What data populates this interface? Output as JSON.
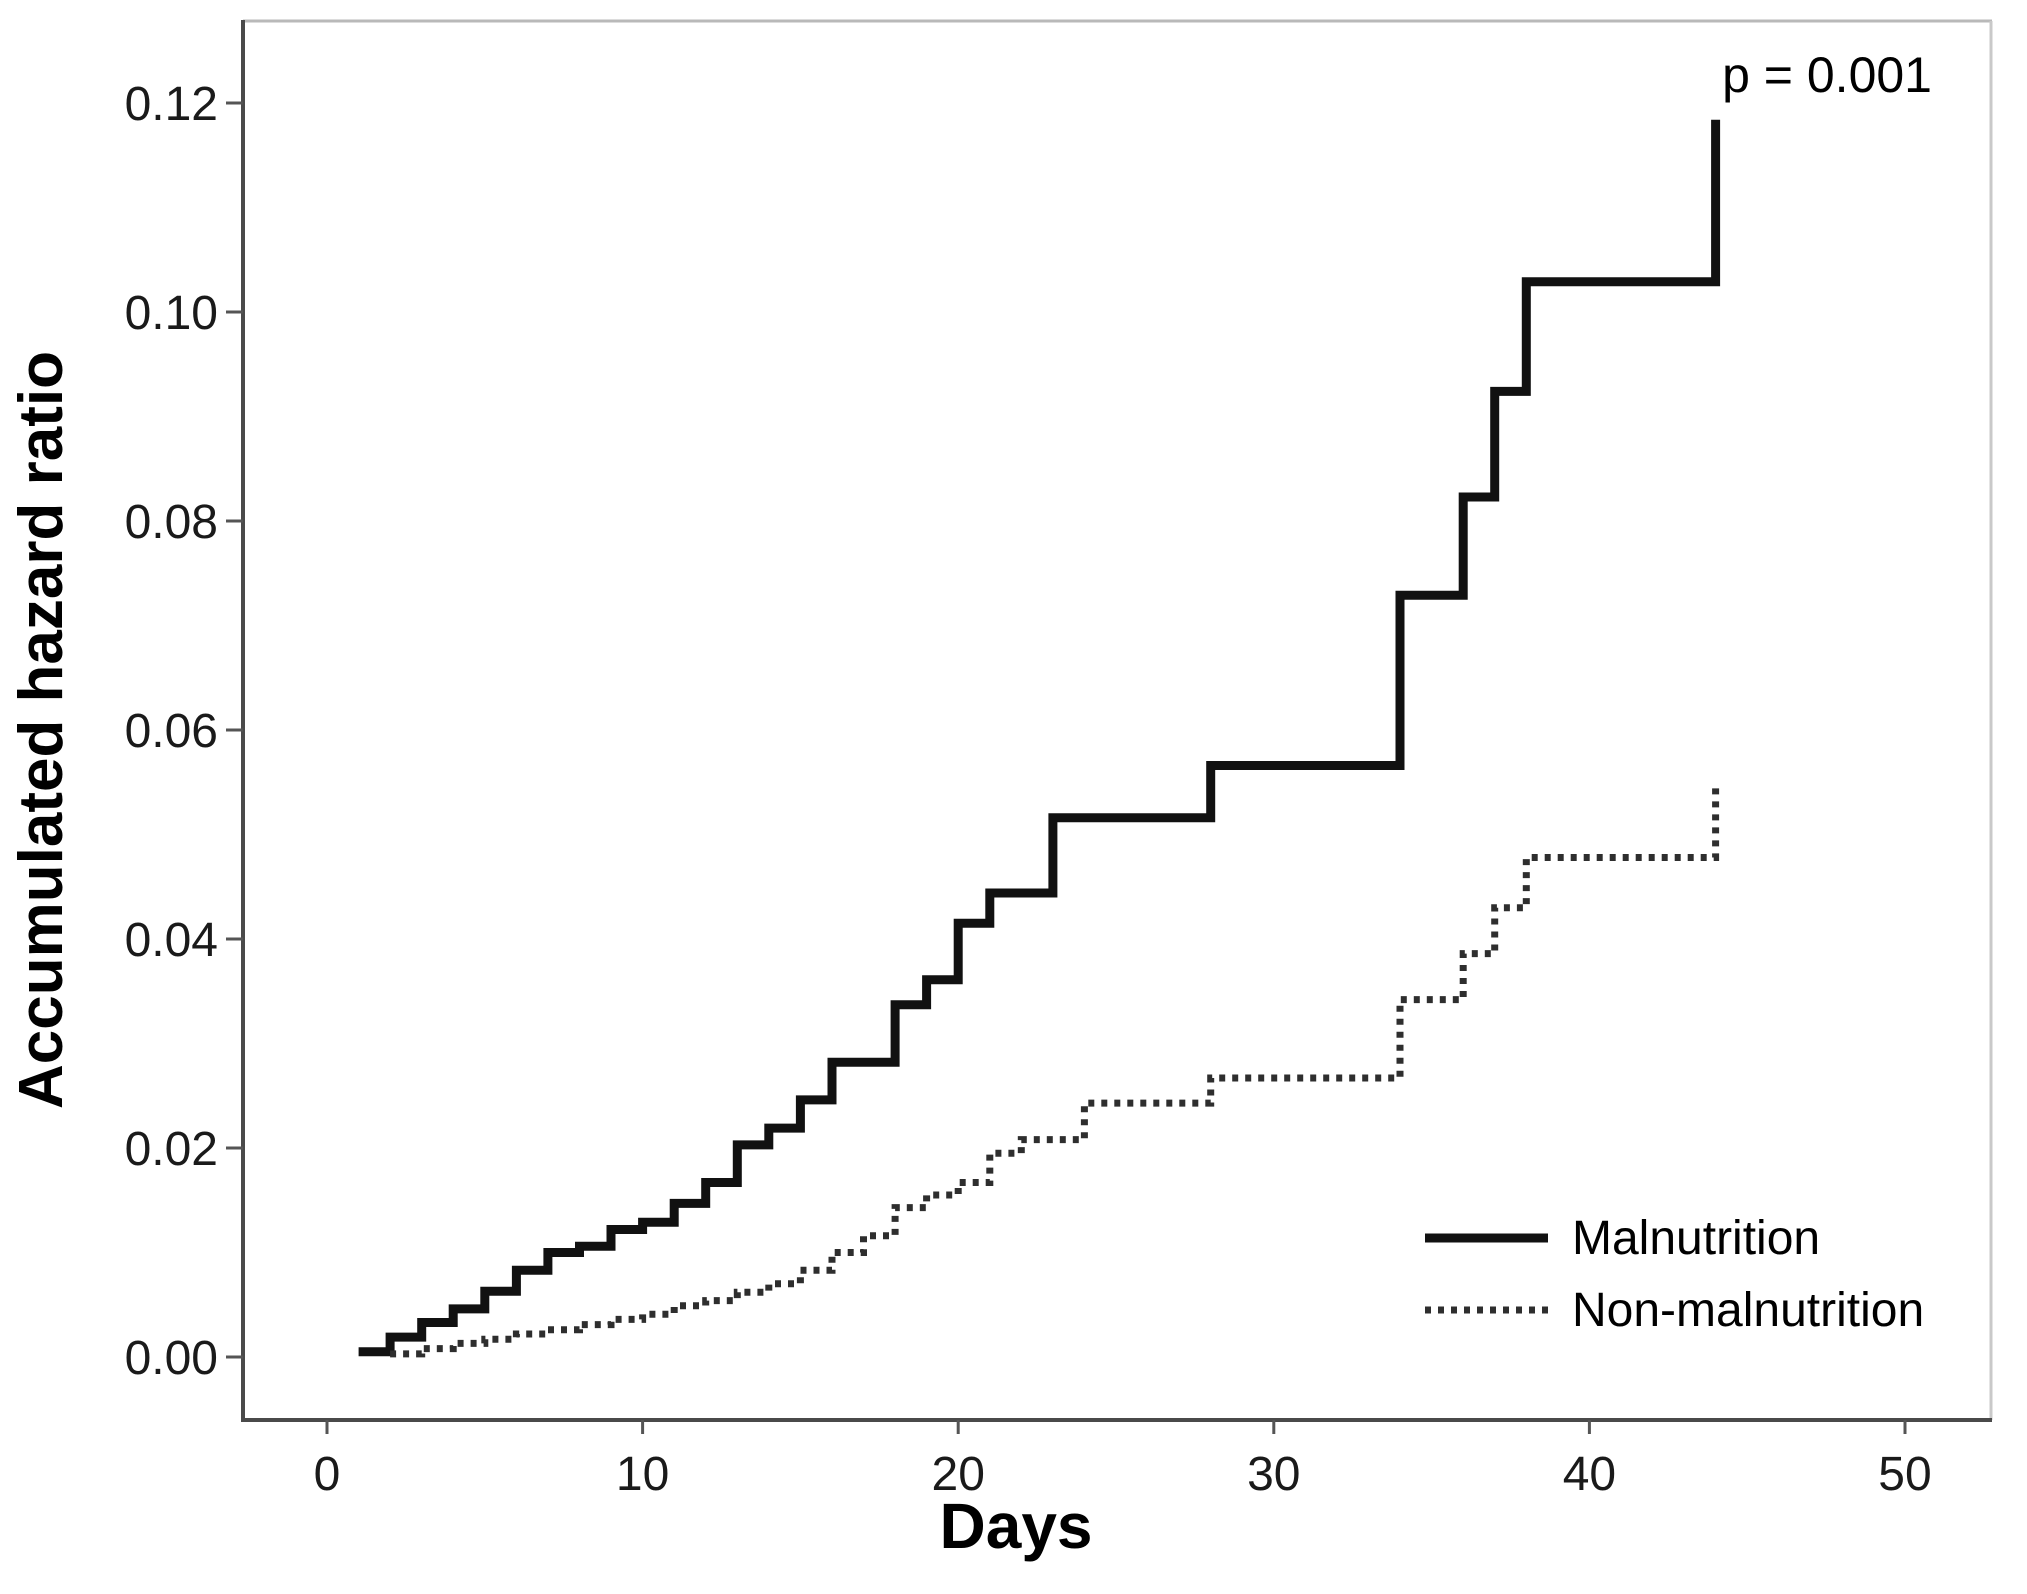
{
  "figure": {
    "p_value_label": "p = 0.001",
    "x_axis": {
      "title": "Days",
      "tick_labels": [
        "0",
        "10",
        "20",
        "30",
        "40",
        "50"
      ]
    },
    "y_axis": {
      "title": "Accumulated hazard ratio",
      "tick_labels": [
        "0.00",
        "0.02",
        "0.04",
        "0.06",
        "0.08",
        "0.10",
        "0.12"
      ]
    },
    "legend": [
      {
        "label": "Malnutrition",
        "style": "solid"
      },
      {
        "label": "Non-malnutrition",
        "style": "dotted"
      }
    ]
  },
  "colors": {
    "background": "#ffffff",
    "solid_line": "#111111",
    "dotted_line": "#2e2e2e",
    "axis_dark": "#4a4a4a",
    "axis_light": "#b9b9b9",
    "tick": "#555555",
    "text": "#1a1a1a"
  },
  "chart_data": {
    "type": "line",
    "subtype": "step-post-cumulative-hazard",
    "title": "",
    "xlabel": "Days",
    "ylabel": "Accumulated hazard ratio",
    "xlim": [
      0,
      52
    ],
    "ylim": [
      0,
      0.127
    ],
    "x_ticks": [
      0,
      10,
      20,
      30,
      40,
      50
    ],
    "y_ticks": [
      0.0,
      0.02,
      0.04,
      0.06,
      0.08,
      0.1,
      0.12
    ],
    "grid": false,
    "legend_position": "lower-right",
    "annotations": [
      {
        "text": "p = 0.001",
        "position": "top-right"
      }
    ],
    "series": [
      {
        "name": "Malnutrition",
        "line_style": "solid",
        "color": "#111111",
        "points": [
          [
            1,
            0.0005
          ],
          [
            2,
            0.0019
          ],
          [
            3,
            0.0033
          ],
          [
            4,
            0.0046
          ],
          [
            5,
            0.0063
          ],
          [
            6,
            0.0083
          ],
          [
            7,
            0.01
          ],
          [
            8,
            0.0106
          ],
          [
            9,
            0.0122
          ],
          [
            10,
            0.0129
          ],
          [
            11,
            0.0147
          ],
          [
            12,
            0.0167
          ],
          [
            13,
            0.0203
          ],
          [
            14,
            0.0219
          ],
          [
            15,
            0.0246
          ],
          [
            16,
            0.0282
          ],
          [
            18,
            0.0337
          ],
          [
            19,
            0.0361
          ],
          [
            20,
            0.0415
          ],
          [
            21,
            0.0444
          ],
          [
            23,
            0.0516
          ],
          [
            28,
            0.0566
          ],
          [
            34,
            0.0729
          ],
          [
            36,
            0.0823
          ],
          [
            37,
            0.0924
          ],
          [
            38,
            0.1029
          ],
          [
            44,
            0.1184
          ]
        ]
      },
      {
        "name": "Non-malnutrition",
        "line_style": "dotted",
        "color": "#2e2e2e",
        "points": [
          [
            2,
            0.0003
          ],
          [
            3,
            0.0008
          ],
          [
            4,
            0.0013
          ],
          [
            5,
            0.0017
          ],
          [
            6,
            0.0022
          ],
          [
            7,
            0.0026
          ],
          [
            8,
            0.0031
          ],
          [
            9,
            0.0036
          ],
          [
            10,
            0.0041
          ],
          [
            11,
            0.0049
          ],
          [
            12,
            0.0054
          ],
          [
            13,
            0.0062
          ],
          [
            14,
            0.007
          ],
          [
            15,
            0.0083
          ],
          [
            16,
            0.01
          ],
          [
            17,
            0.0116
          ],
          [
            18,
            0.0143
          ],
          [
            19,
            0.0155
          ],
          [
            20,
            0.0167
          ],
          [
            21,
            0.0195
          ],
          [
            22,
            0.0208
          ],
          [
            24,
            0.0243
          ],
          [
            28,
            0.0267
          ],
          [
            34,
            0.0342
          ],
          [
            36,
            0.0386
          ],
          [
            37,
            0.043
          ],
          [
            38,
            0.0478
          ],
          [
            44,
            0.0547
          ]
        ]
      }
    ]
  }
}
